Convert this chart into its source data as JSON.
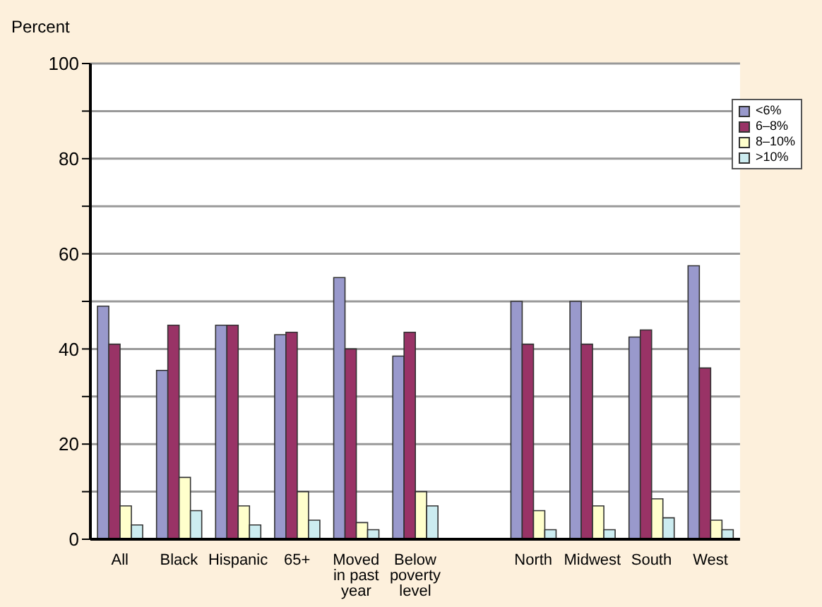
{
  "chart_data": {
    "type": "bar",
    "ylabel": "Percent",
    "categories": [
      "All",
      "Black",
      "Hispanic",
      "65+",
      "Moved in past year",
      "Below poverty level",
      null,
      "North",
      "Midwest",
      "South",
      "West"
    ],
    "series": [
      {
        "name": "<6%",
        "color": "#9999cc",
        "values": [
          49,
          35.5,
          45,
          43,
          55,
          38.5,
          null,
          50,
          50,
          42.5,
          57.5
        ]
      },
      {
        "name": "6–8%",
        "color": "#993366",
        "values": [
          41,
          45,
          45,
          43.5,
          40,
          43.5,
          null,
          41,
          41,
          44,
          36
        ]
      },
      {
        "name": "8–10%",
        "color": "#ffffcc",
        "values": [
          7,
          13,
          7,
          10,
          3.5,
          10,
          null,
          6,
          7,
          8.5,
          4
        ]
      },
      {
        "name": ">10%",
        "color": "#ccecf0",
        "values": [
          3,
          6,
          3,
          4,
          2,
          7,
          null,
          2,
          2,
          4.5,
          2
        ]
      }
    ],
    "ylim": [
      0,
      100
    ],
    "yticks": [
      0,
      {
        "value": 10,
        "label": null
      },
      20,
      {
        "value": 30,
        "label": null
      },
      40,
      {
        "value": 50,
        "label": null
      },
      60,
      {
        "value": 70,
        "label": null
      },
      80,
      {
        "value": 90,
        "label": null
      },
      100
    ],
    "grid": "y",
    "legend": "top right"
  }
}
